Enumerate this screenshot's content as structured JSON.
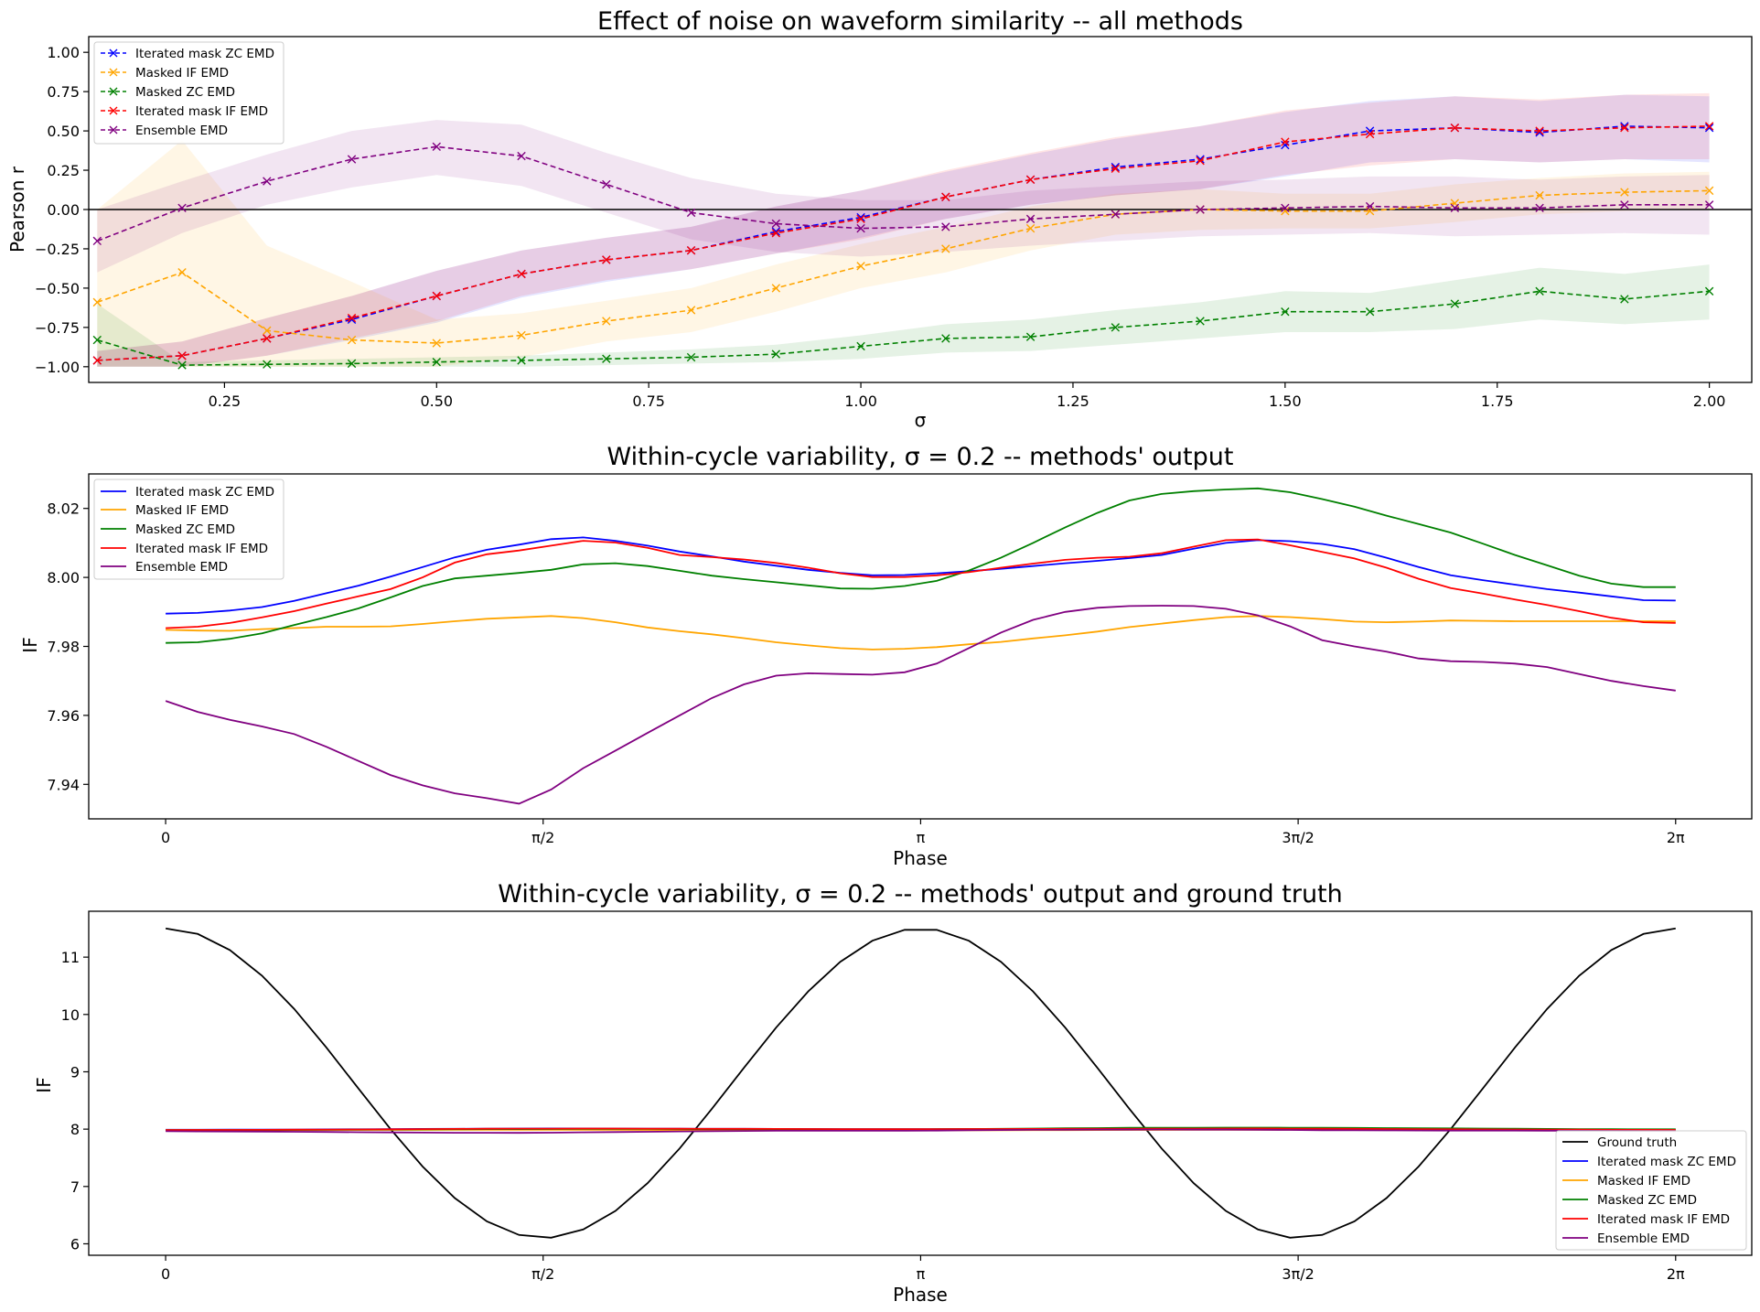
{
  "chart_data": [
    {
      "type": "line",
      "title": "Effect of noise on waveform similarity -- all methods",
      "xlabel": "σ",
      "ylabel": "Pearson r",
      "xlim": [
        0.09,
        2.05
      ],
      "ylim": [
        -1.1,
        1.1
      ],
      "xticks": [
        0.25,
        0.5,
        0.75,
        1.0,
        1.25,
        1.5,
        1.75,
        2.0
      ],
      "xtick_labels": [
        "0.25",
        "0.50",
        "0.75",
        "1.00",
        "1.25",
        "1.50",
        "1.75",
        "2.00"
      ],
      "yticks": [
        -1.0,
        -0.75,
        -0.5,
        -0.25,
        0.0,
        0.25,
        0.5,
        0.75,
        1.0
      ],
      "ytick_labels": [
        "−1.00",
        "−0.75",
        "−0.50",
        "−0.25",
        "0.00",
        "0.25",
        "0.50",
        "0.75",
        "1.00"
      ],
      "hline": 0,
      "legend_position": "top-left",
      "line_style": "dashed",
      "marker": "x",
      "x": [
        0.1,
        0.2,
        0.3,
        0.4,
        0.5,
        0.6,
        0.7,
        0.8,
        0.9,
        1.0,
        1.1,
        1.2,
        1.3,
        1.4,
        1.5,
        1.6,
        1.7,
        1.8,
        1.9,
        2.0
      ],
      "series": [
        {
          "name": "Iterated mask ZC EMD",
          "color": "#0000ff",
          "values": [
            -0.96,
            -0.93,
            -0.82,
            -0.7,
            -0.55,
            -0.41,
            -0.32,
            -0.26,
            -0.14,
            -0.05,
            0.08,
            0.19,
            0.27,
            0.32,
            0.41,
            0.5,
            0.52,
            0.49,
            0.53,
            0.52
          ],
          "lower": [
            -1.0,
            -1.0,
            -0.93,
            -0.83,
            -0.72,
            -0.56,
            -0.46,
            -0.38,
            -0.28,
            -0.18,
            -0.06,
            0.03,
            0.09,
            0.13,
            0.21,
            0.3,
            0.32,
            0.3,
            0.32,
            0.3
          ],
          "upper": [
            -0.9,
            -0.84,
            -0.69,
            -0.55,
            -0.39,
            -0.26,
            -0.18,
            -0.11,
            0.02,
            0.12,
            0.24,
            0.35,
            0.45,
            0.53,
            0.62,
            0.69,
            0.72,
            0.69,
            0.73,
            0.72
          ]
        },
        {
          "name": "Masked IF EMD",
          "color": "#ffa500",
          "values": [
            -0.59,
            -0.4,
            -0.77,
            -0.83,
            -0.85,
            -0.8,
            -0.71,
            -0.64,
            -0.5,
            -0.36,
            -0.25,
            -0.12,
            -0.03,
            0.0,
            -0.01,
            -0.01,
            0.04,
            0.09,
            0.11,
            0.12
          ],
          "lower": [
            -1.0,
            -1.0,
            -1.0,
            -1.0,
            -1.0,
            -0.94,
            -0.84,
            -0.78,
            -0.65,
            -0.5,
            -0.4,
            -0.26,
            -0.16,
            -0.13,
            -0.12,
            -0.12,
            -0.08,
            -0.03,
            -0.01,
            0.0
          ],
          "upper": [
            0.0,
            0.44,
            -0.23,
            -0.46,
            -0.7,
            -0.66,
            -0.58,
            -0.5,
            -0.35,
            -0.22,
            -0.11,
            0.02,
            0.1,
            0.13,
            0.1,
            0.1,
            0.16,
            0.2,
            0.23,
            0.24
          ]
        },
        {
          "name": "Masked ZC EMD",
          "color": "#008000",
          "values": [
            -0.83,
            -0.99,
            -0.985,
            -0.98,
            -0.97,
            -0.96,
            -0.95,
            -0.94,
            -0.92,
            -0.87,
            -0.82,
            -0.81,
            -0.75,
            -0.71,
            -0.65,
            -0.65,
            -0.6,
            -0.52,
            -0.57,
            -0.52
          ],
          "lower": [
            -1.0,
            -1.0,
            -1.0,
            -1.0,
            -1.0,
            -1.0,
            -0.99,
            -0.98,
            -0.97,
            -0.95,
            -0.91,
            -0.9,
            -0.86,
            -0.82,
            -0.78,
            -0.78,
            -0.76,
            -0.7,
            -0.73,
            -0.7
          ],
          "upper": [
            -0.6,
            -0.97,
            -0.96,
            -0.95,
            -0.94,
            -0.93,
            -0.91,
            -0.89,
            -0.86,
            -0.8,
            -0.73,
            -0.7,
            -0.64,
            -0.59,
            -0.52,
            -0.53,
            -0.45,
            -0.37,
            -0.41,
            -0.35
          ]
        },
        {
          "name": "Iterated mask IF EMD",
          "color": "#ff0000",
          "values": [
            -0.96,
            -0.93,
            -0.82,
            -0.69,
            -0.55,
            -0.41,
            -0.32,
            -0.26,
            -0.15,
            -0.06,
            0.08,
            0.19,
            0.26,
            0.31,
            0.43,
            0.48,
            0.52,
            0.5,
            0.52,
            0.53
          ],
          "lower": [
            -1.0,
            -1.0,
            -0.93,
            -0.82,
            -0.71,
            -0.55,
            -0.45,
            -0.38,
            -0.28,
            -0.19,
            -0.06,
            0.03,
            0.09,
            0.13,
            0.22,
            0.28,
            0.32,
            0.3,
            0.32,
            0.32
          ],
          "upper": [
            -0.9,
            -0.84,
            -0.69,
            -0.55,
            -0.39,
            -0.26,
            -0.18,
            -0.11,
            0.02,
            0.12,
            0.25,
            0.36,
            0.46,
            0.53,
            0.63,
            0.68,
            0.72,
            0.7,
            0.73,
            0.74
          ]
        },
        {
          "name": "Ensemble EMD",
          "color": "#800080",
          "values": [
            -0.2,
            0.01,
            0.18,
            0.32,
            0.4,
            0.34,
            0.16,
            -0.02,
            -0.09,
            -0.12,
            -0.11,
            -0.06,
            -0.03,
            0.0,
            0.01,
            0.02,
            0.01,
            0.01,
            0.03,
            0.03
          ],
          "lower": [
            -0.4,
            -0.15,
            0.03,
            0.14,
            0.22,
            0.15,
            -0.02,
            -0.19,
            -0.27,
            -0.3,
            -0.27,
            -0.23,
            -0.2,
            -0.17,
            -0.16,
            -0.15,
            -0.17,
            -0.16,
            -0.15,
            -0.16
          ],
          "upper": [
            0.0,
            0.18,
            0.35,
            0.5,
            0.57,
            0.54,
            0.36,
            0.2,
            0.1,
            0.06,
            0.06,
            0.12,
            0.15,
            0.18,
            0.19,
            0.21,
            0.21,
            0.19,
            0.21,
            0.22
          ]
        }
      ]
    },
    {
      "type": "line",
      "title": "Within-cycle variability, σ = 0.2 -- methods' output",
      "xlabel": "Phase",
      "ylabel": "IF",
      "xlim": [
        -0.32,
        6.6
      ],
      "ylim": [
        7.93,
        8.03
      ],
      "xticks": [
        0,
        1.5708,
        3.1416,
        4.7124,
        6.2832
      ],
      "xtick_labels": [
        "0",
        "π/2",
        "π",
        "3π/2",
        "2π"
      ],
      "yticks": [
        7.94,
        7.96,
        7.98,
        8.0,
        8.02
      ],
      "ytick_labels": [
        "7.94",
        "7.96",
        "7.98",
        "8.00",
        "8.02"
      ],
      "legend_position": "top-left",
      "series": [
        {
          "name": "Iterated mask ZC EMD",
          "color": "#0000ff",
          "values": [
            7.9895,
            7.9897,
            7.9904,
            7.9914,
            7.9932,
            7.9954,
            7.9976,
            8.0002,
            8.003,
            8.0058,
            8.008,
            8.0095,
            8.0111,
            8.0116,
            8.0106,
            8.0092,
            8.0075,
            8.0061,
            8.0046,
            8.0034,
            8.0022,
            8.0013,
            8.0006,
            8.0007,
            8.0012,
            8.0018,
            8.0025,
            8.0033,
            8.0041,
            8.0048,
            8.0056,
            8.0065,
            8.0083,
            8.01,
            8.0108,
            8.0105,
            8.0097,
            8.0082,
            8.0057,
            8.003,
            8.0006,
            7.9992,
            7.9979,
            7.9966,
            7.9956,
            7.9945,
            7.9934,
            7.9933
          ]
        },
        {
          "name": "Masked IF EMD",
          "color": "#ffa500",
          "values": [
            7.9848,
            7.9846,
            7.9845,
            7.985,
            7.9853,
            7.9857,
            7.9857,
            7.9858,
            7.9865,
            7.9873,
            7.988,
            7.9884,
            7.9888,
            7.9882,
            7.987,
            7.9855,
            7.9844,
            7.9835,
            7.9824,
            7.9812,
            7.9803,
            7.9795,
            7.9791,
            7.9793,
            7.9798,
            7.9806,
            7.9813,
            7.9823,
            7.9832,
            7.9843,
            7.9856,
            7.9866,
            7.9876,
            7.9885,
            7.9888,
            7.9885,
            7.9879,
            7.9872,
            7.987,
            7.9872,
            7.9875,
            7.9874,
            7.9873,
            7.9873,
            7.9873,
            7.9873,
            7.9873,
            7.9873
          ]
        },
        {
          "name": "Masked ZC EMD",
          "color": "#008000",
          "values": [
            7.981,
            7.9812,
            7.9822,
            7.9838,
            7.9862,
            7.9885,
            7.991,
            7.9942,
            7.9975,
            7.9997,
            8.0005,
            8.0013,
            8.0022,
            8.0038,
            8.0041,
            8.0033,
            8.0019,
            8.0005,
            7.9995,
            7.9986,
            7.9977,
            7.9968,
            7.9967,
            7.9975,
            7.999,
            8.002,
            8.0057,
            8.01,
            8.0145,
            8.0187,
            8.0223,
            8.0242,
            8.025,
            8.0255,
            8.0258,
            8.0247,
            8.0227,
            8.0205,
            8.0179,
            8.0155,
            8.013,
            8.0098,
            8.0065,
            8.0035,
            8.0005,
            7.9982,
            7.9972,
            7.9972
          ]
        },
        {
          "name": "Iterated mask IF EMD",
          "color": "#ff0000",
          "values": [
            7.9853,
            7.9857,
            7.9868,
            7.9884,
            7.9902,
            7.9924,
            7.9945,
            7.9966,
            8.0,
            8.0043,
            8.0067,
            8.0078,
            8.0092,
            8.0106,
            8.0101,
            8.0086,
            8.0065,
            8.0059,
            8.0052,
            8.0042,
            8.0028,
            8.0012,
            8.0001,
            8.0001,
            8.0006,
            8.0015,
            8.0028,
            8.004,
            8.0051,
            8.0057,
            8.006,
            8.007,
            8.0089,
            8.0108,
            8.011,
            8.0093,
            8.0074,
            8.0055,
            8.0028,
            7.9996,
            7.9969,
            7.9953,
            7.9936,
            7.992,
            7.9902,
            7.9883,
            7.987,
            7.9868
          ]
        },
        {
          "name": "Ensemble EMD",
          "color": "#800080",
          "values": [
            7.9642,
            7.961,
            7.9587,
            7.9568,
            7.9546,
            7.9509,
            7.9468,
            7.9427,
            7.9397,
            7.9374,
            7.936,
            7.9344,
            7.9385,
            7.9447,
            7.9498,
            7.9549,
            7.96,
            7.965,
            7.969,
            7.9715,
            7.9722,
            7.972,
            7.9718,
            7.9725,
            7.975,
            7.9795,
            7.984,
            7.9877,
            7.99,
            7.9912,
            7.9917,
            7.9918,
            7.9917,
            7.9909,
            7.989,
            7.9858,
            7.9818,
            7.98,
            7.9785,
            7.9765,
            7.9757,
            7.9755,
            7.975,
            7.974,
            7.972,
            7.97,
            7.9685,
            7.9672
          ]
        }
      ]
    },
    {
      "type": "line",
      "title": "Within-cycle variability, σ = 0.2 --  methods' output and ground truth",
      "xlabel": "Phase",
      "ylabel": "IF",
      "xlim": [
        -0.32,
        6.6
      ],
      "ylim": [
        5.8,
        11.8
      ],
      "xticks": [
        0,
        1.5708,
        3.1416,
        4.7124,
        6.2832
      ],
      "xtick_labels": [
        "0",
        "π/2",
        "π",
        "3π/2",
        "2π"
      ],
      "yticks": [
        6,
        7,
        8,
        9,
        10,
        11
      ],
      "ytick_labels": [
        "6",
        "7",
        "8",
        "9",
        "10",
        "11"
      ],
      "legend_position": "bottom-right",
      "series": [
        {
          "name": "Ground truth",
          "color": "#000000",
          "form": "cos2",
          "mean": 8.8,
          "amplitude": 2.7
        },
        {
          "name": "Iterated mask ZC EMD",
          "color": "#0000ff",
          "ref": 0
        },
        {
          "name": "Masked IF EMD",
          "color": "#ffa500",
          "ref": 1
        },
        {
          "name": "Masked ZC EMD",
          "color": "#008000",
          "ref": 2
        },
        {
          "name": "Iterated mask IF EMD",
          "color": "#ff0000",
          "ref": 3
        },
        {
          "name": "Ensemble EMD",
          "color": "#800080",
          "ref": 4
        }
      ]
    }
  ]
}
